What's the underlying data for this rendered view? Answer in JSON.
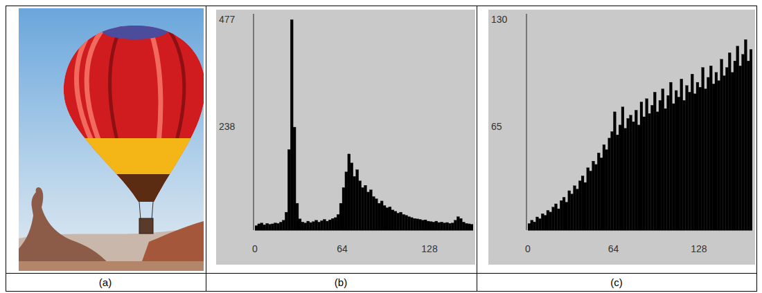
{
  "captions": [
    "(a)",
    "(b)",
    "(c)"
  ],
  "chart_data": [
    {
      "type": "histogram",
      "bins": [
        0,
        2,
        4,
        6,
        8,
        10,
        12,
        14,
        16,
        18,
        20,
        22,
        24,
        26,
        28,
        30,
        32,
        34,
        36,
        38,
        40,
        42,
        44,
        46,
        48,
        50,
        52,
        54,
        56,
        58,
        60,
        62,
        64,
        66,
        68,
        70,
        72,
        74,
        76,
        78,
        80,
        82,
        84,
        86,
        88,
        90,
        92,
        94,
        96,
        98,
        100,
        102,
        104,
        106,
        108,
        110,
        112,
        114,
        116,
        118,
        120,
        122,
        124,
        126,
        128,
        130,
        132,
        134,
        136,
        138,
        140,
        142,
        144,
        146,
        148,
        150,
        152,
        154,
        156,
        158,
        160
      ],
      "values": [
        10,
        14,
        16,
        12,
        15,
        13,
        14,
        16,
        15,
        18,
        22,
        40,
        180,
        470,
        230,
        60,
        25,
        18,
        16,
        20,
        17,
        19,
        22,
        18,
        21,
        24,
        20,
        23,
        26,
        28,
        35,
        60,
        95,
        130,
        170,
        150,
        120,
        135,
        110,
        95,
        100,
        85,
        90,
        75,
        70,
        60,
        65,
        55,
        50,
        52,
        45,
        42,
        38,
        40,
        35,
        33,
        30,
        28,
        26,
        25,
        24,
        22,
        23,
        20,
        19,
        18,
        20,
        17,
        18,
        16,
        17,
        15,
        16,
        22,
        30,
        26,
        18,
        15,
        14,
        13
      ],
      "color": "#000000",
      "xlim": [
        0,
        160
      ],
      "xticks": [
        0,
        64,
        128
      ],
      "ylim": [
        0,
        477
      ],
      "yticks": [
        238,
        477
      ]
    },
    {
      "type": "histogram",
      "bins": [
        0,
        2,
        4,
        6,
        8,
        10,
        12,
        14,
        16,
        18,
        20,
        22,
        24,
        26,
        28,
        30,
        32,
        34,
        36,
        38,
        40,
        42,
        44,
        46,
        48,
        50,
        52,
        54,
        56,
        58,
        60,
        62,
        64,
        66,
        68,
        70,
        72,
        74,
        76,
        78,
        80,
        82,
        84,
        86,
        88,
        90,
        92,
        94,
        96,
        98,
        100,
        102,
        104,
        106,
        108,
        110,
        112,
        114,
        116,
        118,
        120,
        122,
        124,
        126,
        128,
        130,
        132,
        134,
        136,
        138,
        140,
        142,
        144,
        146,
        148,
        150,
        152,
        154,
        156,
        158,
        160,
        162,
        164,
        166,
        168
      ],
      "values": [
        4,
        6,
        5,
        8,
        7,
        10,
        9,
        12,
        11,
        14,
        16,
        13,
        18,
        20,
        17,
        24,
        22,
        27,
        25,
        30,
        33,
        29,
        38,
        36,
        42,
        40,
        47,
        44,
        52,
        49,
        56,
        60,
        72,
        58,
        64,
        75,
        62,
        68,
        70,
        66,
        73,
        64,
        78,
        69,
        80,
        71,
        76,
        84,
        72,
        79,
        86,
        74,
        82,
        90,
        77,
        85,
        81,
        92,
        79,
        88,
        84,
        95,
        83,
        90,
        87,
        99,
        86,
        93,
        100,
        89,
        96,
        91,
        104,
        94,
        99,
        108,
        96,
        103,
        112,
        100,
        107,
        116,
        103,
        110
      ],
      "color": "#000000",
      "xlim": [
        0,
        168
      ],
      "xticks": [
        0,
        64,
        128
      ],
      "ylim": [
        0,
        130
      ],
      "yticks": [
        65,
        130
      ]
    }
  ]
}
